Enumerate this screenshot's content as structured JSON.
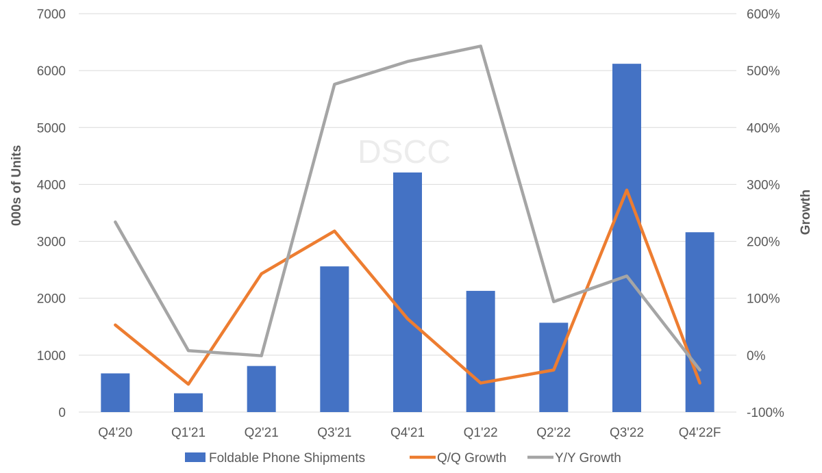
{
  "chart_data": {
    "type": "bar",
    "watermark": "DSCC",
    "categories": [
      "Q4'20",
      "Q1'21",
      "Q2'21",
      "Q3'21",
      "Q4'21",
      "Q1'22",
      "Q2'22",
      "Q3'22",
      "Q4'22F"
    ],
    "ylabel": "000s of Units",
    "y2label": "Growth",
    "ylim": [
      0,
      7000
    ],
    "yticks": [
      0,
      1000,
      2000,
      3000,
      4000,
      5000,
      6000,
      7000
    ],
    "yticks_labels": [
      "0",
      "1000",
      "2000",
      "3000",
      "4000",
      "5000",
      "6000",
      "7000"
    ],
    "y2lim": [
      -100,
      600
    ],
    "y2ticks": [
      -100,
      0,
      100,
      200,
      300,
      400,
      500,
      600
    ],
    "y2ticks_labels": [
      "-100%",
      "0%",
      "100%",
      "200%",
      "300%",
      "400%",
      "500%",
      "600%"
    ],
    "grid": true,
    "legend_position": "bottom",
    "series": [
      {
        "name": "Foldable Phone Shipments",
        "type": "bar",
        "axis": "left",
        "color": "#4472c4",
        "values": [
          680,
          330,
          810,
          2560,
          4210,
          2130,
          1570,
          6120,
          3160
        ]
      },
      {
        "name": "Q/Q Growth",
        "type": "line",
        "axis": "right",
        "color": "#ed7d31",
        "values": [
          53,
          -51,
          143,
          218,
          64,
          -49,
          -26,
          290,
          -49
        ]
      },
      {
        "name": "Y/Y Growth",
        "type": "line",
        "axis": "right",
        "color": "#a5a5a5",
        "values": [
          234,
          8,
          -1,
          476,
          516,
          543,
          94,
          139,
          -26
        ]
      }
    ]
  }
}
